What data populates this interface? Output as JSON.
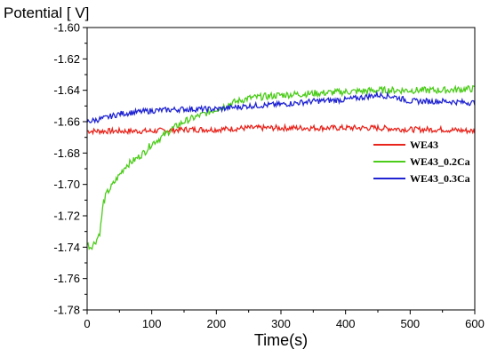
{
  "chart_data": {
    "type": "line",
    "ylabel": "Potential [ V]",
    "xlabel": "Time(s)",
    "xlim": [
      0,
      600
    ],
    "ylim": [
      -1.78,
      -1.6
    ],
    "x_ticks": [
      "0",
      "100",
      "200",
      "300",
      "400",
      "500",
      "600"
    ],
    "y_ticks": [
      "-1.60",
      "-1.62",
      "-1.64",
      "-1.66",
      "-1.68",
      "-1.70",
      "-1.72",
      "-1.74",
      "-1.76",
      "-1.78"
    ],
    "grid": false,
    "legend_position": "right",
    "series": [
      {
        "name": "WE43",
        "color": "#e8241c",
        "x": [
          0,
          50,
          100,
          150,
          200,
          250,
          300,
          350,
          400,
          450,
          500,
          550,
          600
        ],
        "y": [
          -1.666,
          -1.666,
          -1.666,
          -1.665,
          -1.665,
          -1.664,
          -1.664,
          -1.664,
          -1.664,
          -1.664,
          -1.665,
          -1.665,
          -1.666
        ]
      },
      {
        "name": "WE43_0.2Ca",
        "color": "#4ccc1a",
        "x": [
          0,
          5,
          10,
          15,
          20,
          25,
          30,
          40,
          50,
          60,
          75,
          90,
          100,
          115,
          130,
          150,
          175,
          200,
          225,
          250,
          275,
          300,
          350,
          400,
          450,
          500,
          550,
          600
        ],
        "y": [
          -1.738,
          -1.74,
          -1.738,
          -1.735,
          -1.73,
          -1.712,
          -1.706,
          -1.7,
          -1.694,
          -1.688,
          -1.684,
          -1.679,
          -1.674,
          -1.67,
          -1.665,
          -1.66,
          -1.656,
          -1.652,
          -1.648,
          -1.645,
          -1.644,
          -1.643,
          -1.642,
          -1.641,
          -1.64,
          -1.64,
          -1.64,
          -1.639
        ]
      },
      {
        "name": "WE43_0.3Ca",
        "color": "#1f23d1",
        "x": [
          0,
          25,
          50,
          75,
          100,
          150,
          200,
          250,
          300,
          350,
          400,
          450,
          475,
          500,
          550,
          600
        ],
        "y": [
          -1.66,
          -1.658,
          -1.655,
          -1.654,
          -1.653,
          -1.652,
          -1.652,
          -1.65,
          -1.649,
          -1.647,
          -1.646,
          -1.643,
          -1.644,
          -1.647,
          -1.647,
          -1.648
        ]
      }
    ]
  }
}
